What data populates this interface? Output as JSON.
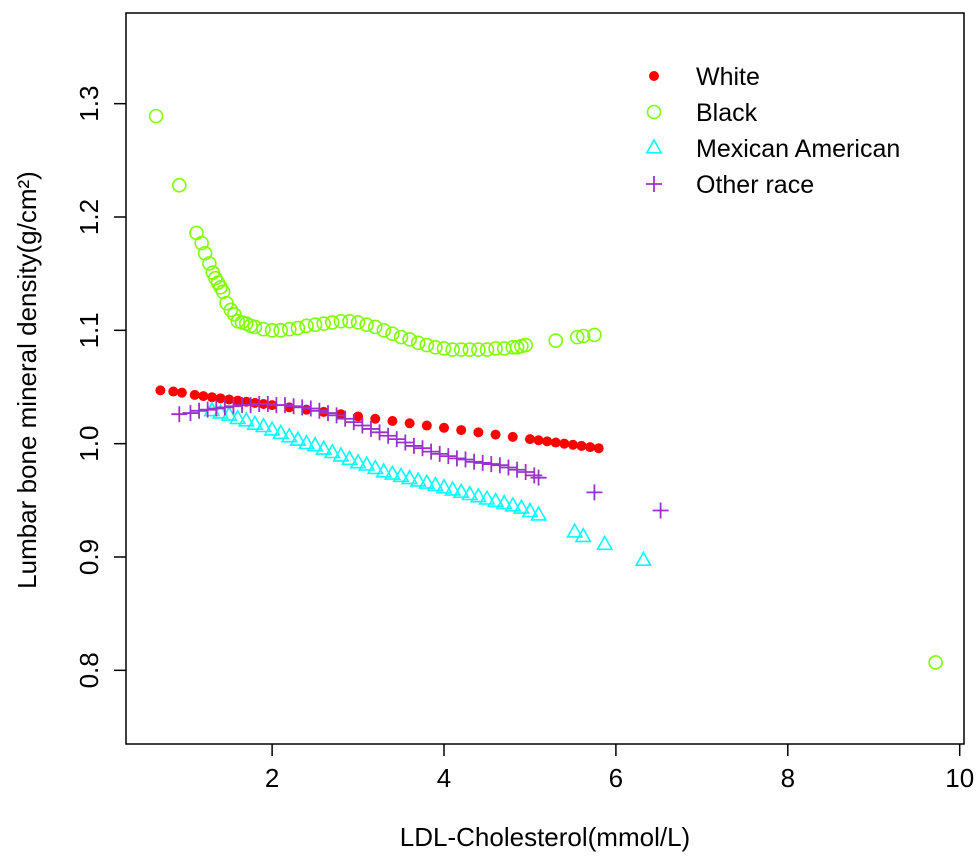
{
  "chart_data": {
    "type": "scatter",
    "title": "",
    "xlabel": "LDL-Cholesterol(mmol/L)",
    "ylabel": "Lumbar bone mineral density(g/cm²)",
    "xlim": [
      0.3,
      10.05
    ],
    "ylim": [
      0.735,
      1.38
    ],
    "xticks": [
      2,
      4,
      6,
      8,
      10
    ],
    "yticks": [
      0.8,
      0.9,
      1.0,
      1.1,
      1.2,
      1.3
    ],
    "xtick_labels": [
      "2",
      "4",
      "6",
      "8",
      "10"
    ],
    "ytick_labels": [
      "0.8",
      "0.9",
      "1.0",
      "1.1",
      "1.2",
      "1.3"
    ],
    "grid": false,
    "legend_position": "top-right",
    "series": [
      {
        "name": "White",
        "marker": "filled-circle",
        "color": "#ff0000",
        "x": [
          0.7,
          0.85,
          0.95,
          1.1,
          1.2,
          1.3,
          1.4,
          1.5,
          1.6,
          1.7,
          1.8,
          1.9,
          2.0,
          2.2,
          2.4,
          2.6,
          2.8,
          3.0,
          3.2,
          3.4,
          3.6,
          3.8,
          4.0,
          4.2,
          4.4,
          4.6,
          4.8,
          5.0,
          5.1,
          5.2,
          5.3,
          5.4,
          5.5,
          5.6,
          5.7,
          5.8
        ],
        "y": [
          1.047,
          1.046,
          1.045,
          1.043,
          1.042,
          1.041,
          1.04,
          1.039,
          1.038,
          1.037,
          1.036,
          1.035,
          1.034,
          1.032,
          1.03,
          1.028,
          1.026,
          1.024,
          1.022,
          1.02,
          1.018,
          1.016,
          1.014,
          1.012,
          1.01,
          1.008,
          1.006,
          1.004,
          1.003,
          1.002,
          1.001,
          1.0,
          0.999,
          0.998,
          0.997,
          0.996
        ]
      },
      {
        "name": "Black",
        "marker": "open-circle",
        "color": "#7fff00",
        "x": [
          0.65,
          0.92,
          1.12,
          1.18,
          1.22,
          1.27,
          1.31,
          1.34,
          1.37,
          1.4,
          1.43,
          1.47,
          1.52,
          1.56,
          1.6,
          1.65,
          1.7,
          1.75,
          1.8,
          1.9,
          2.0,
          2.1,
          2.2,
          2.3,
          2.4,
          2.5,
          2.6,
          2.7,
          2.8,
          2.9,
          3.0,
          3.1,
          3.2,
          3.3,
          3.4,
          3.5,
          3.6,
          3.7,
          3.8,
          3.9,
          4.0,
          4.1,
          4.2,
          4.3,
          4.4,
          4.5,
          4.6,
          4.7,
          4.8,
          4.85,
          4.9,
          4.95,
          5.3,
          5.55,
          5.62,
          5.75,
          9.72
        ],
        "y": [
          1.289,
          1.228,
          1.186,
          1.177,
          1.168,
          1.159,
          1.151,
          1.146,
          1.142,
          1.138,
          1.134,
          1.124,
          1.118,
          1.114,
          1.108,
          1.107,
          1.106,
          1.104,
          1.103,
          1.101,
          1.1,
          1.1,
          1.101,
          1.102,
          1.104,
          1.105,
          1.106,
          1.107,
          1.108,
          1.108,
          1.107,
          1.105,
          1.103,
          1.1,
          1.097,
          1.094,
          1.092,
          1.089,
          1.087,
          1.085,
          1.084,
          1.083,
          1.083,
          1.083,
          1.083,
          1.083,
          1.084,
          1.084,
          1.085,
          1.085,
          1.086,
          1.087,
          1.091,
          1.094,
          1.095,
          1.096,
          0.807
        ]
      },
      {
        "name": "Mexican American",
        "marker": "open-triangle",
        "color": "#00ffff",
        "x": [
          1.3,
          1.4,
          1.5,
          1.6,
          1.7,
          1.8,
          1.9,
          2.0,
          2.1,
          2.2,
          2.3,
          2.4,
          2.5,
          2.6,
          2.7,
          2.8,
          2.9,
          3.0,
          3.1,
          3.2,
          3.3,
          3.4,
          3.5,
          3.6,
          3.7,
          3.8,
          3.9,
          4.0,
          4.1,
          4.2,
          4.3,
          4.4,
          4.5,
          4.6,
          4.7,
          4.8,
          4.9,
          5.0,
          5.1,
          5.52,
          5.62,
          5.87,
          6.32
        ],
        "y": [
          1.029,
          1.027,
          1.025,
          1.022,
          1.02,
          1.017,
          1.015,
          1.012,
          1.009,
          1.006,
          1.003,
          1.0,
          0.998,
          0.995,
          0.992,
          0.989,
          0.986,
          0.983,
          0.981,
          0.978,
          0.975,
          0.973,
          0.971,
          0.969,
          0.967,
          0.965,
          0.963,
          0.961,
          0.959,
          0.957,
          0.955,
          0.953,
          0.951,
          0.949,
          0.947,
          0.945,
          0.943,
          0.94,
          0.937,
          0.922,
          0.918,
          0.911,
          0.897
        ]
      },
      {
        "name": "Other race",
        "marker": "plus",
        "color": "#9932cc",
        "x": [
          0.92,
          1.05,
          1.15,
          1.25,
          1.35,
          1.45,
          1.55,
          1.65,
          1.75,
          1.85,
          1.95,
          2.05,
          2.15,
          2.25,
          2.35,
          2.45,
          2.55,
          2.65,
          2.75,
          2.85,
          2.95,
          3.05,
          3.15,
          3.25,
          3.35,
          3.45,
          3.55,
          3.65,
          3.75,
          3.85,
          3.95,
          4.05,
          4.15,
          4.25,
          4.35,
          4.45,
          4.55,
          4.65,
          4.75,
          4.85,
          4.95,
          5.05,
          5.1,
          5.75,
          6.52
        ],
        "y": [
          1.026,
          1.027,
          1.029,
          1.03,
          1.031,
          1.032,
          1.033,
          1.034,
          1.034,
          1.035,
          1.035,
          1.034,
          1.034,
          1.033,
          1.032,
          1.031,
          1.029,
          1.027,
          1.025,
          1.022,
          1.019,
          1.016,
          1.013,
          1.01,
          1.007,
          1.004,
          1.001,
          0.998,
          0.996,
          0.993,
          0.991,
          0.989,
          0.987,
          0.986,
          0.984,
          0.983,
          0.982,
          0.981,
          0.979,
          0.977,
          0.975,
          0.972,
          0.97,
          0.957,
          0.941
        ]
      }
    ]
  }
}
